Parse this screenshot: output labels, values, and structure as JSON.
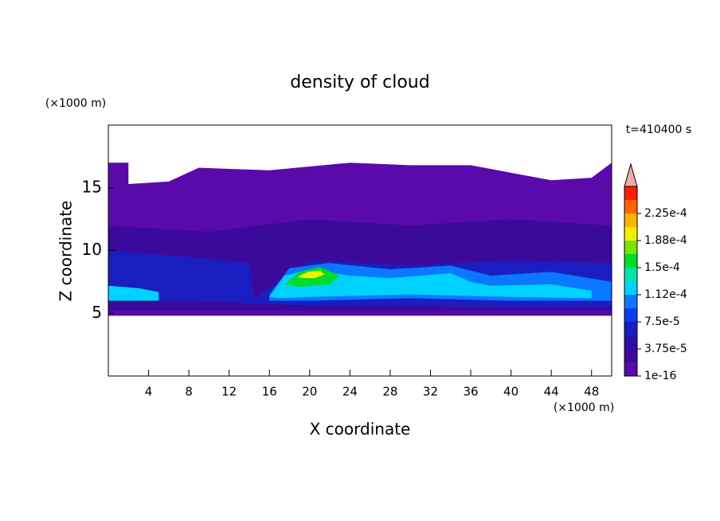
{
  "chart_data": {
    "type": "contour",
    "title": "density of cloud",
    "x_label": "X coordinate",
    "y_label": "Z coordinate",
    "x_unit": "(×1000 m)",
    "y_unit": "(×1000 m)",
    "annotation": "t=410400 s",
    "xlim": [
      0,
      50
    ],
    "xticks": [
      4,
      8,
      12,
      16,
      20,
      24,
      28,
      32,
      36,
      40,
      44,
      48
    ],
    "ylim": [
      0,
      20
    ],
    "yticks": [
      5,
      10,
      15
    ],
    "colorbar": {
      "lim": [
        0,
        0.0002625
      ],
      "colors": [
        "#5a0aaa",
        "#3c0a9a",
        "#2a10a8",
        "#1a1ec0",
        "#0a3cf0",
        "#0a78ff",
        "#00d2ff",
        "#00e6aa",
        "#00dc28",
        "#78e600",
        "#f0f000",
        "#ffb400",
        "#ff6400",
        "#ff1e00"
      ],
      "extend_color": "#f4a8a8",
      "ticks": [
        1e-16,
        {
          "value": 3.75e-05,
          "label": "3.75e-5"
        },
        {
          "value": 7.5e-05,
          "label": "7.5e-5"
        },
        {
          "value": 0.0001125,
          "label": "1.12e-4"
        },
        {
          "value": 0.00015,
          "label": "1.5e-4"
        },
        {
          "value": 0.0001875,
          "label": "1.88e-4"
        },
        {
          "value": 0.000225,
          "label": "2.25e-4"
        }
      ]
    },
    "regions": [
      {
        "value": 1e-16,
        "x": [
          0,
          0,
          2,
          2,
          6,
          9,
          16,
          24,
          30,
          36,
          40,
          44,
          48,
          50,
          50
        ],
        "z": [
          4.8,
          17,
          17,
          15.3,
          15.5,
          16.6,
          16.4,
          17,
          16.8,
          16.8,
          16.2,
          15.6,
          15.8,
          17,
          4.8
        ]
      },
      {
        "value": 2e-05,
        "x": [
          0,
          0,
          10,
          20,
          30,
          40,
          50,
          50
        ],
        "z": [
          5.2,
          12,
          11.5,
          12.5,
          12,
          12.5,
          12,
          5.2
        ]
      },
      {
        "value": 6e-05,
        "x": [
          0,
          0,
          8,
          14,
          14.5,
          20,
          30,
          40,
          50,
          50,
          40,
          30,
          20,
          14,
          8
        ],
        "z": [
          6,
          10,
          9.5,
          9,
          6.2,
          9.2,
          8.8,
          9.2,
          9,
          5.5,
          5.5,
          5.6,
          5.6,
          5.8,
          6
        ]
      },
      {
        "value": 0.0001,
        "x": [
          16,
          18,
          22,
          28,
          34,
          38,
          44,
          50,
          50,
          40,
          30,
          20,
          16
        ],
        "z": [
          6.5,
          8.6,
          9,
          8.5,
          8.8,
          8,
          8.3,
          7.5,
          6,
          6,
          6.2,
          6,
          6
        ]
      },
      {
        "value": 0.00012,
        "x": [
          16,
          17.5,
          20,
          24,
          28,
          34,
          36,
          38,
          44,
          48,
          48,
          40,
          30,
          20,
          17
        ],
        "z": [
          6.3,
          8,
          8.5,
          8,
          7.8,
          8.2,
          7.5,
          7.2,
          7.3,
          6.8,
          6.2,
          6.3,
          6.5,
          6.3,
          6.2
        ]
      },
      {
        "value": 0.00012,
        "x": [
          0,
          0,
          3,
          5,
          5
        ],
        "z": [
          6,
          7.2,
          7,
          6.7,
          6
        ]
      },
      {
        "value": 0.000155,
        "x": [
          17.5,
          19,
          21,
          23,
          22,
          19
        ],
        "z": [
          7.3,
          8.3,
          8.7,
          8,
          7.3,
          7.1
        ]
      },
      {
        "value": 0.00019,
        "x": [
          18.8,
          19.8,
          21,
          21.5,
          20.5,
          19.5
        ],
        "z": [
          7.9,
          8.3,
          8.4,
          8.1,
          7.8,
          7.8
        ]
      }
    ]
  }
}
